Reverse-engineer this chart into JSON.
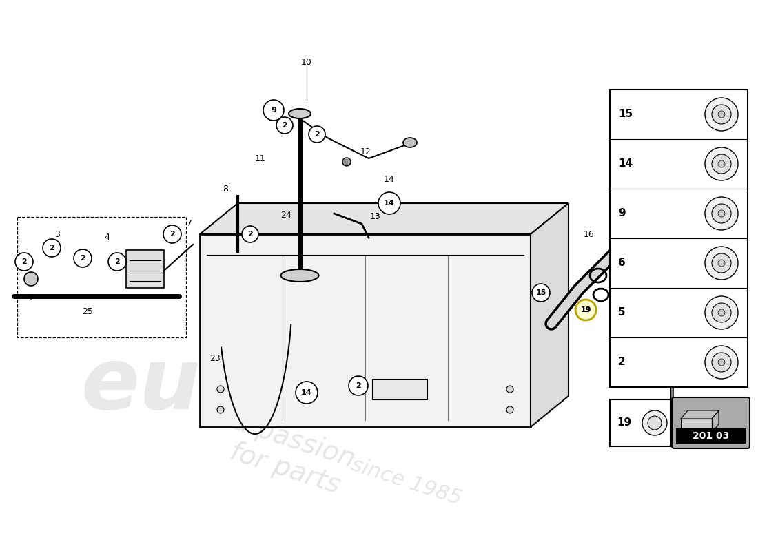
{
  "bg_color": "#ffffff",
  "diagram_code": "201 03",
  "sidebar_items": [
    {
      "num": "15"
    },
    {
      "num": "14"
    },
    {
      "num": "9"
    },
    {
      "num": "6"
    },
    {
      "num": "5"
    },
    {
      "num": "2"
    }
  ],
  "watermark_color": "#cccccc",
  "line_color": "#000000",
  "tank_face_color": "#f0f0f0",
  "tank_top_color": "#e0e0e0",
  "tank_right_color": "#d8d8d8"
}
